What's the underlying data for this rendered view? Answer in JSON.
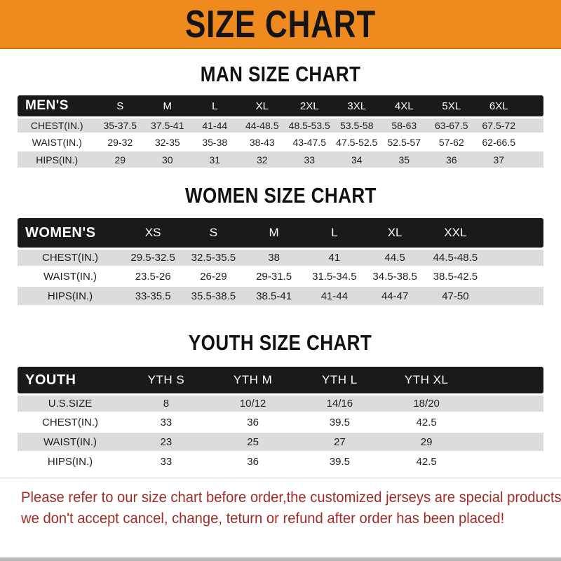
{
  "banner": {
    "title": "SIZE CHART",
    "background": "#EE8A1E",
    "text_color": "#141414"
  },
  "sections": [
    {
      "id": "men",
      "heading": "MAN SIZE CHART",
      "table": {
        "label": "MEN'S",
        "columns": [
          "S",
          "M",
          "L",
          "XL",
          "2XL",
          "3XL",
          "4XL",
          "5XL",
          "6XL"
        ],
        "rows": [
          {
            "label": "CHEST(IN.)",
            "values": [
              "35-37.5",
              "37.5-41",
              "41-44",
              "44-48.5",
              "48.5-53.5",
              "53.5-58",
              "58-63",
              "63-67.5",
              "67.5-72"
            ]
          },
          {
            "label": "WAIST(IN.)",
            "values": [
              "29-32",
              "32-35",
              "35-38",
              "38-43",
              "43-47.5",
              "47.5-52.5",
              "52.5-57",
              "57-62",
              "62-66.5"
            ]
          },
          {
            "label": "HIPS(IN.)",
            "values": [
              "29",
              "30",
              "31",
              "32",
              "33",
              "34",
              "35",
              "36",
              "37"
            ]
          }
        ]
      }
    },
    {
      "id": "women",
      "heading": "WOMEN SIZE CHART",
      "table": {
        "label": "WOMEN'S",
        "columns": [
          "XS",
          "S",
          "M",
          "L",
          "XL",
          "XXL"
        ],
        "rows": [
          {
            "label": "CHEST(IN.)",
            "values": [
              "29.5-32.5",
              "32.5-35.5",
              "38",
              "41",
              "44.5",
              "44.5-48.5"
            ]
          },
          {
            "label": "WAIST(IN.)",
            "values": [
              "23.5-26",
              "26-29",
              "29-31.5",
              "31.5-34.5",
              "34.5-38.5",
              "38.5-42.5"
            ]
          },
          {
            "label": "HIPS(IN.)",
            "values": [
              "33-35.5",
              "35.5-38.5",
              "38.5-41",
              "41-44",
              "44-47",
              "47-50"
            ]
          }
        ]
      }
    },
    {
      "id": "youth",
      "heading": "YOUTH SIZE CHART",
      "table": {
        "label": "YOUTH",
        "columns": [
          "YTH S",
          "YTH M",
          "YTH L",
          "YTH XL"
        ],
        "rows": [
          {
            "label": "U.S.SIZE",
            "values": [
              "8",
              "10/12",
              "14/16",
              "18/20"
            ]
          },
          {
            "label": "CHEST(IN.)",
            "values": [
              "33",
              "36",
              "39.5",
              "42.5"
            ]
          },
          {
            "label": "WAIST(IN.)",
            "values": [
              "23",
              "25",
              "27",
              "29"
            ]
          },
          {
            "label": "HIPS(IN.)",
            "values": [
              "33",
              "36",
              "39.5",
              "42.5"
            ]
          }
        ]
      }
    }
  ],
  "footer": {
    "line1": "Please refer to our size chart before order,the customized jerseys are special products,",
    "line2": "we don't accept cancel, change, teturn or refund after order has been placed!",
    "text_color": "#A32B26"
  },
  "colors": {
    "banner_orange": "#EE8A1E",
    "header_bar_black": "#1A1A1A",
    "row_gray": "#DCDCDC",
    "row_white": "#FFFFFF",
    "note_red": "#A32B26"
  }
}
